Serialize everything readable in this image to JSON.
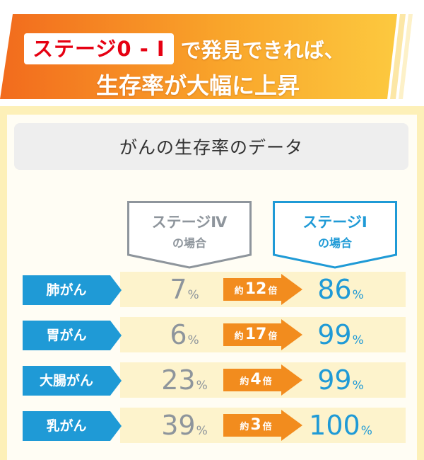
{
  "banner": {
    "highlight": "ステージ0 - I",
    "line1_rest": "で発見できれば、",
    "line2": "生存率が大幅に上昇"
  },
  "chart_data": {
    "type": "table",
    "title": "がんの生存率のデータ",
    "columns": [
      {
        "label_line1": "ステージⅣ",
        "label_line2": "の場合"
      },
      {
        "label_line1": "ステージⅠ",
        "label_line2": "の場合"
      }
    ],
    "unit": "%",
    "ratio_prefix": "約",
    "ratio_suffix": "倍",
    "rows": [
      {
        "category": "肺がん",
        "stage4": "7",
        "stage1": "86",
        "ratio": "12"
      },
      {
        "category": "胃がん",
        "stage4": "6",
        "stage1": "99",
        "ratio": "17"
      },
      {
        "category": "大腸がん",
        "stage4": "23",
        "stage1": "99",
        "ratio": "4"
      },
      {
        "category": "乳がん",
        "stage4": "39",
        "stage1": "100",
        "ratio": "3"
      }
    ]
  },
  "colors": {
    "banner_start": "#f26b1d",
    "banner_end": "#fbc33c",
    "badge_text": "#e60012",
    "panel_bg": "#fdf0b8",
    "row_bg": "#fdf3cc",
    "stage4": "#8e959c",
    "stage1": "#1f9ad6",
    "ratio_arrow": "#f28c1e",
    "category_label": "#1f9ad6"
  }
}
